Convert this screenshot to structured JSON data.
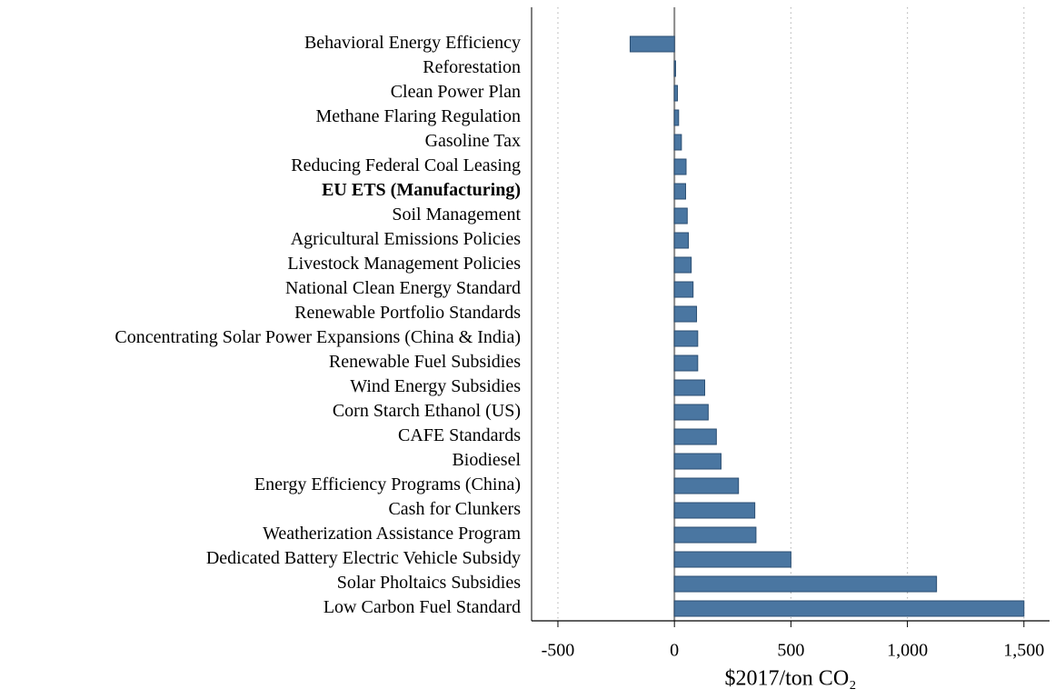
{
  "chart_data": {
    "type": "bar",
    "orientation": "horizontal",
    "xlabel": "$2017/ton CO₂",
    "categories": [
      "Behavioral Energy Efficiency",
      "Reforestation",
      "Clean Power Plan",
      "Methane Flaring Regulation",
      "Gasoline Tax",
      "Reducing Federal Coal Leasing",
      "EU ETS (Manufacturing)",
      "Soil Management",
      "Agricultural Emissions Policies",
      "Livestock Management Policies",
      "National Clean Energy Standard",
      "Renewable Portfolio Standards",
      "Concentrating Solar Power Expansions (China & India)",
      "Renewable Fuel Subsidies",
      "Wind Energy Subsidies",
      "Corn Starch Ethanol (US)",
      "CAFE Standards",
      "Biodiesel",
      "Energy Efficiency Programs (China)",
      "Cash for Clunkers",
      "Weatherization Assistance Program",
      "Dedicated Battery Electric Vehicle Subsidy",
      "Solar Pholtaics Subsidies",
      "Low Carbon Fuel Standard"
    ],
    "values": [
      -190,
      5,
      13,
      18,
      30,
      50,
      48,
      55,
      60,
      72,
      80,
      95,
      100,
      100,
      130,
      145,
      180,
      200,
      275,
      345,
      350,
      500,
      1125,
      1500
    ],
    "bold": [
      6
    ],
    "color": "#4a76a1",
    "xlim": [
      -613,
      1610
    ],
    "xticks": [
      -500,
      0,
      500,
      {
        "value": 1000,
        "label": "1,000"
      },
      {
        "value": 1500,
        "label": "1,500"
      }
    ],
    "grid": true
  }
}
